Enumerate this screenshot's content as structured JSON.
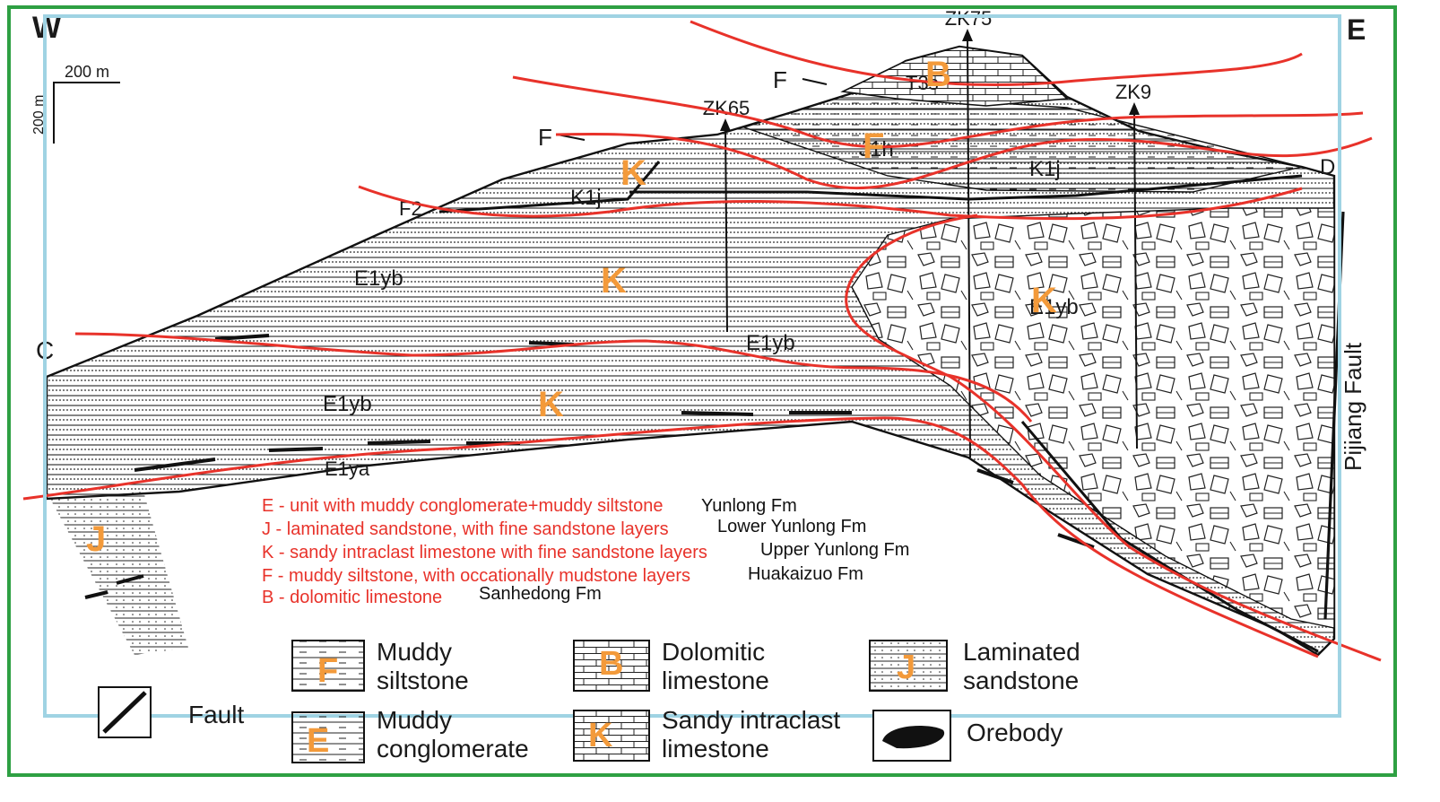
{
  "directions": {
    "west": "W",
    "east": "E"
  },
  "scale": {
    "horizontal": "200 m",
    "vertical": "200 m"
  },
  "section_ends": {
    "left": "C",
    "right": "D"
  },
  "boreholes": [
    {
      "id": "zk75",
      "label": "ZK75"
    },
    {
      "id": "zk65",
      "label": "ZK65"
    },
    {
      "id": "zk9",
      "label": "ZK9"
    }
  ],
  "fault_labels": {
    "f": "F",
    "f1": "F",
    "f2": "F2"
  },
  "fault_name": "Pijiang Fault",
  "strata_labels": {
    "t3s": "T3s",
    "j1h": "J1h",
    "k1j_left": "K1j",
    "k1j_right": "K1j",
    "e1yb_upper": "E1yb",
    "e1yb_mid": "E1yb",
    "e1yb_lower": "E1yb",
    "e1yb_breccia": "E1yb",
    "e1ya": "E1ya"
  },
  "overlay_letters": {
    "b": "B",
    "f": "F",
    "k_top": "K",
    "k_mid": "K",
    "k_lower": "K",
    "k_right": "K",
    "j": "J"
  },
  "notes": [
    {
      "code": "E - unit with muddy conglomerate+muddy siltstone",
      "formation": "Yunlong Fm"
    },
    {
      "code": "J - laminated sandstone, with fine sandstone layers",
      "formation": "Lower Yunlong Fm"
    },
    {
      "code": "K - sandy intraclast limestone with fine sandstone layers",
      "formation": "Upper Yunlong Fm"
    },
    {
      "code": "F - muddy siltstone, with occationally mudstone layers",
      "formation": "Huakaizuo Fm"
    },
    {
      "code": "B - dolomitic limestone",
      "formation": "Sanhedong Fm"
    }
  ],
  "legend": [
    {
      "id": "fault",
      "line1": "Fault",
      "line2": "",
      "letter": ""
    },
    {
      "id": "muddy-siltstone",
      "line1": "Muddy",
      "line2": "siltstone",
      "letter": "F"
    },
    {
      "id": "muddy-conglomerate",
      "line1": "Muddy",
      "line2": "conglomerate",
      "letter": "E"
    },
    {
      "id": "dolomitic-limestone",
      "line1": "Dolomitic",
      "line2": "limestone",
      "letter": "B"
    },
    {
      "id": "sandy-intraclast-limestone",
      "line1": "Sandy intraclast",
      "line2": "limestone",
      "letter": "K"
    },
    {
      "id": "laminated-sandstone",
      "line1": "Laminated",
      "line2": "sandstone",
      "letter": "J"
    },
    {
      "id": "orebody",
      "line1": "Orebody",
      "line2": "",
      "letter": ""
    }
  ],
  "colors": {
    "frame_green": "#2ea043",
    "frame_blue": "#9fd3e3",
    "annotation_red": "#e8322a",
    "overlay_orange": "#f39a3a",
    "ink": "#1a1a1a"
  }
}
